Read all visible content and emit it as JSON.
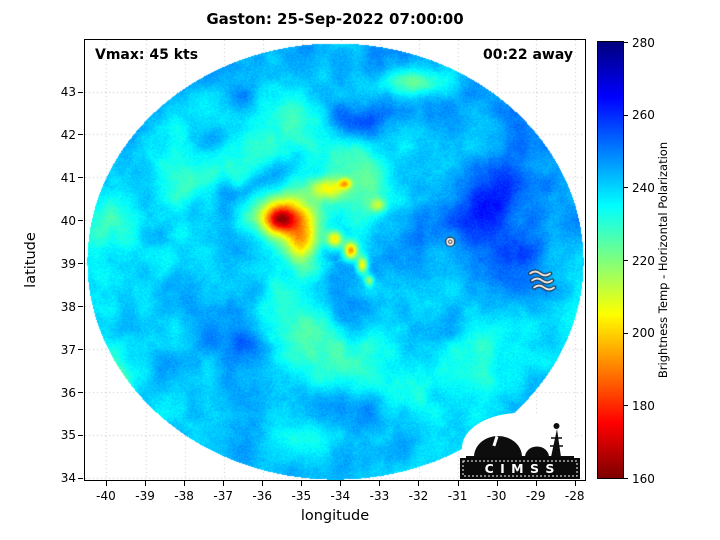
{
  "title": "Gaston: 25-Sep-2022 07:00:00",
  "annotations": {
    "vmax": "Vmax: 45 kts",
    "away": "00:22 away"
  },
  "axes": {
    "xlabel": "longitude",
    "ylabel": "latitude",
    "xticks": [
      -40,
      -39,
      -38,
      -37,
      -36,
      -35,
      -34,
      -33,
      -32,
      -31,
      -30,
      -29,
      -28
    ],
    "yticks": [
      34,
      35,
      36,
      37,
      38,
      39,
      40,
      41,
      42,
      43
    ],
    "xlim": [
      -40.55,
      -27.75
    ],
    "ylim": [
      33.95,
      44.2
    ]
  },
  "colorbar": {
    "label": "Brightness Temp - Horizontal Polarization",
    "ticks": [
      280,
      260,
      240,
      220,
      200,
      180,
      160
    ],
    "min": 160,
    "max": 280,
    "colormap": "jet-reversed",
    "color_min": "#800000",
    "color_max": "#000080"
  },
  "logo": {
    "text": "C I M S S"
  },
  "chart_data": {
    "type": "heatmap",
    "title": "Gaston: 25-Sep-2022 07:00:00",
    "storm_name": "Gaston",
    "timestamp": "25-Sep-2022 07:00:00",
    "vmax_kts": 45,
    "countdown": "00:22 away",
    "xlabel": "longitude",
    "ylabel": "latitude",
    "xlim": [
      -40.55,
      -27.75
    ],
    "ylim": [
      33.95,
      44.2
    ],
    "value_label": "Brightness Temp - Horizontal Polarization",
    "value_range": [
      160,
      280
    ],
    "grid": true,
    "swath": {
      "center_lon": -34.15,
      "center_lat": 39.05,
      "radius_lon_deg": 6.35,
      "radius_lat_deg": 5.08
    },
    "field": {
      "base_temp": 244,
      "noise_amp": 9,
      "large_scale_amp": 8,
      "speckle_amp": 5,
      "band": {
        "arms": 2,
        "tightness": 5.5,
        "phase": 2.1,
        "amp": 17
      },
      "cells": [
        {
          "lon": -35.45,
          "lat": 40.1,
          "sx": 0.8,
          "sy": 0.55,
          "dt": -52
        },
        {
          "lon": -35.55,
          "lat": 40.0,
          "sx": 0.38,
          "sy": 0.27,
          "dt": -32
        },
        {
          "lon": -35.0,
          "lat": 39.45,
          "sx": 0.42,
          "sy": 0.5,
          "dt": -34
        },
        {
          "lon": -34.35,
          "lat": 40.75,
          "sx": 0.5,
          "sy": 0.26,
          "dt": -30
        },
        {
          "lon": -33.9,
          "lat": 40.85,
          "sx": 0.16,
          "sy": 0.12,
          "dt": -28
        },
        {
          "lon": -34.15,
          "lat": 39.55,
          "sx": 0.2,
          "sy": 0.2,
          "dt": -38
        },
        {
          "lon": -33.75,
          "lat": 39.3,
          "sx": 0.18,
          "sy": 0.2,
          "dt": -46
        },
        {
          "lon": -33.45,
          "lat": 38.95,
          "sx": 0.14,
          "sy": 0.2,
          "dt": -40
        },
        {
          "lon": -33.28,
          "lat": 38.6,
          "sx": 0.12,
          "sy": 0.14,
          "dt": -26
        },
        {
          "lon": -33.05,
          "lat": 40.35,
          "sx": 0.22,
          "sy": 0.16,
          "dt": -22
        },
        {
          "lon": -32.2,
          "lat": 43.2,
          "sx": 0.85,
          "sy": 0.3,
          "dt": -20
        },
        {
          "lon": -39.85,
          "lat": 36.4,
          "sx": 0.55,
          "sy": 0.55,
          "dt": -16
        },
        {
          "lon": -34.5,
          "lat": 34.85,
          "sx": 1.4,
          "sy": 0.45,
          "dt": -10
        },
        {
          "lon": -33.8,
          "lat": 42.2,
          "sx": 0.9,
          "sy": 0.45,
          "dt": 14
        },
        {
          "lon": -30.3,
          "lat": 40.3,
          "sx": 0.8,
          "sy": 0.7,
          "dt": 12
        },
        {
          "lon": -36.9,
          "lat": 41.8,
          "sx": 0.7,
          "sy": 0.45,
          "dt": 10
        },
        {
          "lon": -31.6,
          "lat": 36.6,
          "sx": 0.9,
          "sy": 0.55,
          "dt": 10
        },
        {
          "lon": -36.6,
          "lat": 37.1,
          "sx": 0.7,
          "sy": 0.55,
          "dt": 8
        },
        {
          "lon": -32.4,
          "lat": 39.9,
          "sx": 0.55,
          "sy": 0.45,
          "dt": 10
        },
        {
          "lon": -29.2,
          "lat": 39.0,
          "sx": 0.9,
          "sy": 0.8,
          "dt": 8
        }
      ]
    },
    "markers": [
      {
        "type": "storm-symbol",
        "lon": -31.2,
        "lat": 39.5
      },
      {
        "type": "scatter-artifact",
        "lon": -28.95,
        "lat": 38.55
      }
    ]
  }
}
